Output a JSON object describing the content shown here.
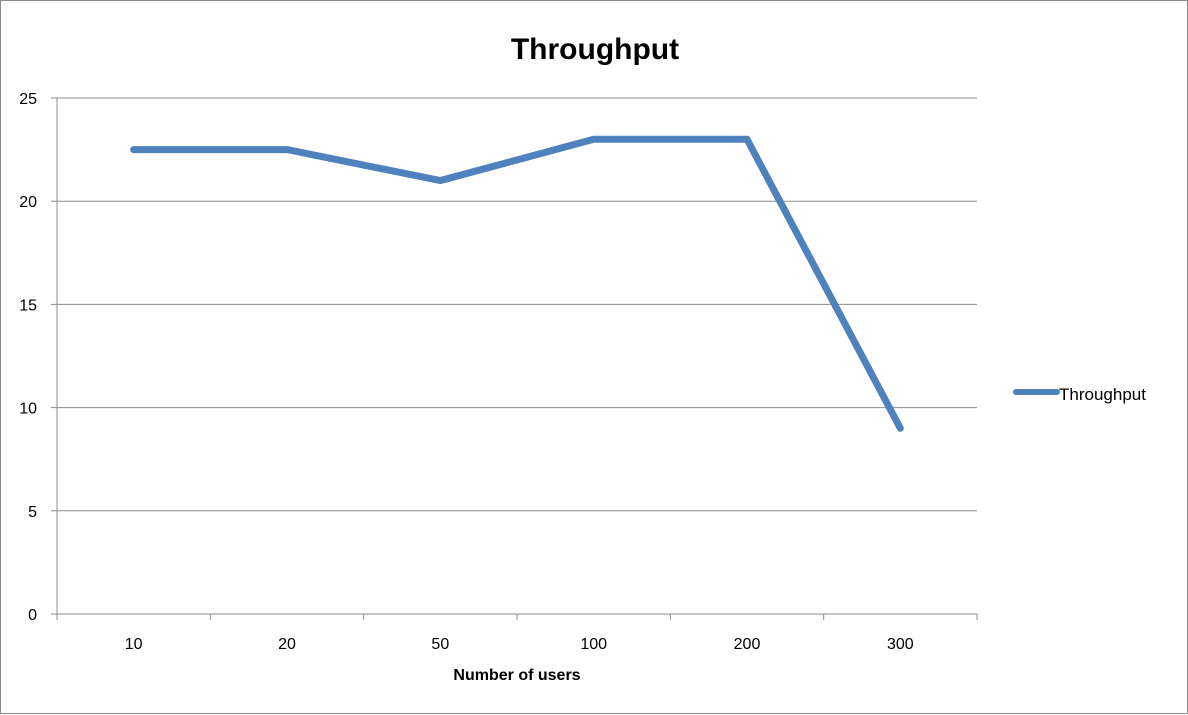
{
  "chart_data": {
    "type": "line",
    "title": "Throughput",
    "xlabel": "Number of users",
    "ylabel": "",
    "categories": [
      "10",
      "20",
      "50",
      "100",
      "200",
      "300"
    ],
    "series": [
      {
        "name": "Throughput",
        "values": [
          22.5,
          22.5,
          21,
          23,
          23,
          9
        ],
        "color": "#4f81bd"
      }
    ],
    "ylim": [
      0,
      25
    ],
    "yticks": [
      "0",
      "5",
      "10",
      "15",
      "20",
      "25"
    ],
    "grid": "horizontal",
    "legend_position": "right"
  }
}
